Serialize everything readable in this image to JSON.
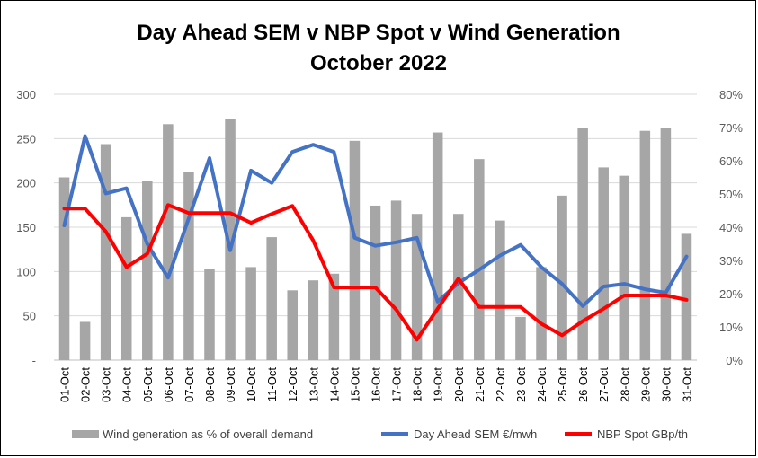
{
  "chart_data": {
    "type": "bar+line",
    "title": "Day Ahead SEM v NBP Spot v Wind Generation",
    "subtitle": "October 2022",
    "categories": [
      "01-Oct",
      "02-Oct",
      "03-Oct",
      "04-Oct",
      "05-Oct",
      "06-Oct",
      "07-Oct",
      "08-Oct",
      "09-Oct",
      "10-Oct",
      "11-Oct",
      "12-Oct",
      "13-Oct",
      "14-Oct",
      "15-Oct",
      "16-Oct",
      "17-Oct",
      "18-Oct",
      "19-Oct",
      "20-Oct",
      "21-Oct",
      "22-Oct",
      "23-Oct",
      "24-Oct",
      "25-Oct",
      "26-Oct",
      "27-Oct",
      "28-Oct",
      "29-Oct",
      "30-Oct",
      "31-Oct"
    ],
    "left_axis": {
      "ylim": [
        0,
        300
      ],
      "ticks": [
        "-",
        "50",
        "100",
        "150",
        "200",
        "250",
        "300"
      ]
    },
    "right_axis": {
      "ylim": [
        0,
        0.8
      ],
      "ticks": [
        "0%",
        "10%",
        "20%",
        "30%",
        "40%",
        "50%",
        "60%",
        "70%",
        "80%"
      ]
    },
    "grid": true,
    "legend_position": "bottom",
    "series": [
      {
        "name": "Wind generation as % of overall demand",
        "type": "bar",
        "axis": "right",
        "color": "#a6a6a6",
        "values": [
          0.55,
          0.115,
          0.65,
          0.43,
          0.54,
          0.71,
          0.565,
          0.275,
          0.725,
          0.28,
          0.37,
          0.21,
          0.24,
          0.26,
          0.66,
          0.465,
          0.48,
          0.44,
          0.685,
          0.44,
          0.605,
          0.42,
          0.13,
          0.28,
          0.495,
          0.7,
          0.58,
          0.555,
          0.69,
          0.7,
          0.38
        ]
      },
      {
        "name": "Day Ahead SEM €/mwh",
        "type": "line",
        "axis": "left",
        "color": "#4472c4",
        "values": [
          152,
          253,
          188,
          194,
          131,
          93,
          160,
          228,
          124,
          214,
          200,
          235,
          243,
          235,
          138,
          129,
          133,
          138,
          66,
          87,
          102,
          118,
          130,
          105,
          86,
          61,
          83,
          86,
          80,
          76,
          117
        ]
      },
      {
        "name": "NBP Spot GBp/th",
        "type": "line",
        "axis": "left",
        "color": "#ff0000",
        "values": [
          171,
          171,
          145,
          105,
          120,
          175,
          166,
          166,
          166,
          155,
          165,
          174,
          135,
          82,
          82,
          82,
          57,
          23,
          58,
          92,
          60,
          60,
          60,
          41,
          28,
          44,
          58,
          73,
          73,
          73,
          68
        ]
      }
    ]
  }
}
